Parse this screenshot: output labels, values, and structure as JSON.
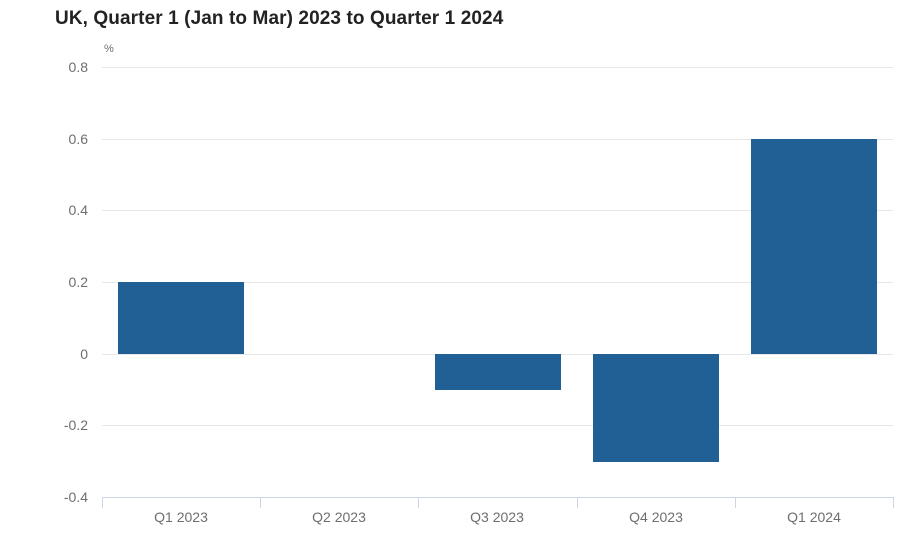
{
  "chart_data": {
    "type": "bar",
    "title": "UK, Quarter 1 (Jan to Mar) 2023 to Quarter 1 2024",
    "unit_label": "%",
    "xlabel": "",
    "ylabel": "%",
    "categories": [
      "Q1 2023",
      "Q2 2023",
      "Q3 2023",
      "Q4 2023",
      "Q1 2024"
    ],
    "values": [
      0.2,
      0.0,
      -0.1,
      -0.3,
      0.6
    ],
    "ylim": [
      -0.4,
      0.8
    ],
    "ytick_step": 0.2,
    "grid": true,
    "legend_position": "none",
    "colors": {
      "bar": "#206095",
      "gridline": "#e8e8e8",
      "axis_line": "#ccd6e8",
      "tick_text": "#6e6e6e",
      "title_text": "#222222"
    }
  }
}
